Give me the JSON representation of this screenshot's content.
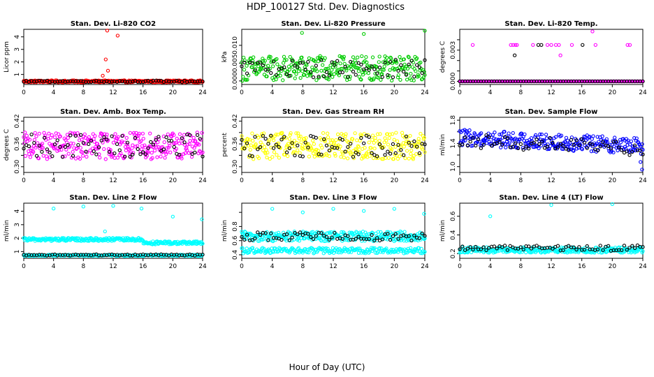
{
  "figure": {
    "title": "HDP_100127  Std. Dev. Diagnostics",
    "xlabel": "Hour of Day (UTC)"
  },
  "colors": {
    "black": "#000000",
    "red": "#ff0000",
    "green": "#00cc00",
    "magenta": "#ff00ff",
    "yellow": "#ffff00",
    "blue": "#0000ff",
    "cyan": "#00ffff"
  },
  "chart_data": [
    {
      "id": "co2",
      "type": "scatter",
      "title": "Stan. Dev. Li-820 CO2",
      "ylabel": "Licor ppm",
      "xlim": [
        0,
        24
      ],
      "ylim": [
        0.2,
        4.6
      ],
      "xticks": [
        0,
        4,
        8,
        12,
        16,
        20,
        24
      ],
      "yticks": [
        1,
        2,
        3,
        4
      ],
      "ytick_labels": [
        "1",
        "2",
        "3",
        "4"
      ],
      "color": "red",
      "secondary_color": "black",
      "series": [
        {
          "name": "main",
          "color": "red",
          "base": 0.45,
          "noise": 0.08
        },
        {
          "name": "secondary",
          "color": "black",
          "base": 0.45,
          "noise": 0.06
        }
      ],
      "outliers": [
        {
          "x": 11.2,
          "y": 4.5,
          "color": "red"
        },
        {
          "x": 12.6,
          "y": 4.1,
          "color": "red"
        },
        {
          "x": 11.0,
          "y": 2.2,
          "color": "red"
        },
        {
          "x": 11.3,
          "y": 1.3,
          "color": "red"
        },
        {
          "x": 10.6,
          "y": 0.9,
          "color": "red"
        }
      ]
    },
    {
      "id": "pressure",
      "type": "scatter",
      "title": "Stan. Dev. Li-820 Pressure",
      "ylabel": "kPa",
      "xlim": [
        0,
        24
      ],
      "ylim": [
        -0.001,
        0.0145
      ],
      "xticks": [
        0,
        4,
        8,
        12,
        16,
        20,
        24
      ],
      "yticks": [
        0,
        0.005,
        0.01
      ],
      "ytick_labels": [
        "0.000",
        "0.005",
        "0.010"
      ],
      "series": [
        {
          "name": "main",
          "color": "green",
          "base": 0.0035,
          "noise": 0.0035
        },
        {
          "name": "secondary",
          "color": "black",
          "base": 0.0035,
          "noise": 0.0025
        }
      ],
      "outliers": [
        {
          "x": 7.9,
          "y": 0.0135,
          "color": "green"
        },
        {
          "x": 16.0,
          "y": 0.0132,
          "color": "green"
        },
        {
          "x": 24.0,
          "y": 0.0141,
          "color": "green"
        }
      ]
    },
    {
      "id": "temp",
      "type": "scatter",
      "title": "Stan. Dev. Li-820 Temp.",
      "ylabel": "degrees C",
      "xlim": [
        0,
        24
      ],
      "ylim": [
        -0.0003,
        0.005
      ],
      "xticks": [
        0,
        4,
        8,
        12,
        16,
        20,
        24
      ],
      "yticks": [
        0,
        0.001,
        0.002,
        0.003,
        0.004
      ],
      "ytick_labels": [
        "0.000",
        "",
        "",
        "0.003",
        ""
      ],
      "series": [
        {
          "name": "main",
          "color": "magenta",
          "base": 0.0,
          "noise": 0.0
        },
        {
          "name": "secondary",
          "color": "black",
          "base": 0.0,
          "noise": 0.0
        }
      ],
      "outliers": [
        {
          "x": 1.7,
          "y": 0.0035,
          "color": "magenta"
        },
        {
          "x": 6.7,
          "y": 0.0035,
          "color": "magenta"
        },
        {
          "x": 7.0,
          "y": 0.0035,
          "color": "magenta"
        },
        {
          "x": 7.3,
          "y": 0.0035,
          "color": "magenta"
        },
        {
          "x": 7.5,
          "y": 0.0035,
          "color": "magenta"
        },
        {
          "x": 9.6,
          "y": 0.0035,
          "color": "magenta"
        },
        {
          "x": 10.3,
          "y": 0.0035,
          "color": "black"
        },
        {
          "x": 10.7,
          "y": 0.0035,
          "color": "black"
        },
        {
          "x": 11.5,
          "y": 0.0035,
          "color": "magenta"
        },
        {
          "x": 12.0,
          "y": 0.0035,
          "color": "magenta"
        },
        {
          "x": 12.6,
          "y": 0.0035,
          "color": "magenta"
        },
        {
          "x": 13.0,
          "y": 0.0035,
          "color": "magenta"
        },
        {
          "x": 14.7,
          "y": 0.0035,
          "color": "magenta"
        },
        {
          "x": 16.1,
          "y": 0.0035,
          "color": "black"
        },
        {
          "x": 17.8,
          "y": 0.0035,
          "color": "magenta"
        },
        {
          "x": 22.0,
          "y": 0.0035,
          "color": "magenta"
        },
        {
          "x": 22.3,
          "y": 0.0035,
          "color": "magenta"
        },
        {
          "x": 17.4,
          "y": 0.0048,
          "color": "magenta"
        },
        {
          "x": 7.2,
          "y": 0.0025,
          "color": "black"
        },
        {
          "x": 13.2,
          "y": 0.0025,
          "color": "magenta"
        }
      ]
    },
    {
      "id": "boxtemp",
      "type": "scatter",
      "title": "Stan. Dev. Amb. Box Temp.",
      "ylabel": "degrees C",
      "xlim": [
        0,
        24
      ],
      "ylim": [
        0.285,
        0.43
      ],
      "xticks": [
        0,
        4,
        8,
        12,
        16,
        20,
        24
      ],
      "yticks": [
        0.3,
        0.33,
        0.36,
        0.39,
        0.42
      ],
      "ytick_labels": [
        "0.30",
        "",
        "0.36",
        "",
        "0.42"
      ],
      "series": [
        {
          "name": "main",
          "color": "magenta",
          "base": 0.355,
          "noise": 0.035
        },
        {
          "name": "secondary",
          "color": "black",
          "base": 0.355,
          "noise": 0.03
        }
      ],
      "outliers": []
    },
    {
      "id": "rh",
      "type": "scatter",
      "title": "Stan. Dev. Gas Stream RH",
      "ylabel": "percent",
      "xlim": [
        0,
        24
      ],
      "ylim": [
        0.285,
        0.43
      ],
      "xticks": [
        0,
        4,
        8,
        12,
        16,
        20,
        24
      ],
      "yticks": [
        0.3,
        0.33,
        0.36,
        0.39,
        0.42
      ],
      "ytick_labels": [
        "0.30",
        "",
        "0.36",
        "",
        "0.42"
      ],
      "series": [
        {
          "name": "main",
          "color": "yellow",
          "base": 0.355,
          "noise": 0.035
        },
        {
          "name": "secondary",
          "color": "black",
          "base": 0.355,
          "noise": 0.03
        }
      ],
      "outliers": []
    },
    {
      "id": "sampleflow",
      "type": "scatter",
      "title": "Stan. Dev. Sample Flow",
      "ylabel": "ml/min",
      "xlim": [
        0,
        24
      ],
      "ylim": [
        0.9,
        1.85
      ],
      "xticks": [
        0,
        4,
        8,
        12,
        16,
        20,
        24
      ],
      "yticks": [
        1.0,
        1.2,
        1.4,
        1.6,
        1.8
      ],
      "ytick_labels": [
        "1.0",
        "",
        "1.4",
        "",
        "1.8"
      ],
      "series": [
        {
          "name": "main",
          "color": "blue",
          "base": 1.5,
          "noise": 0.14,
          "trend": -0.006
        },
        {
          "name": "secondary",
          "color": "black",
          "base": 1.45,
          "noise": 0.12,
          "trend": -0.006
        }
      ],
      "outliers": [
        {
          "x": 23.9,
          "y": 0.95,
          "color": "blue"
        },
        {
          "x": 23.7,
          "y": 1.08,
          "color": "blue"
        }
      ]
    },
    {
      "id": "line2",
      "type": "scatter",
      "title": "Stan. Dev. Line 2 Flow",
      "ylabel": "ml/min",
      "xlim": [
        0,
        24
      ],
      "ylim": [
        0.5,
        4.6
      ],
      "xticks": [
        0,
        4,
        8,
        12,
        16,
        20,
        24
      ],
      "yticks": [
        1,
        2,
        3,
        4
      ],
      "ytick_labels": [
        "1",
        "2",
        "3",
        "4"
      ],
      "series": [
        {
          "name": "main",
          "color": "cyan",
          "base": 1.9,
          "noise": 0.12,
          "step_at": 16,
          "step_to": 1.65
        },
        {
          "name": "secondary",
          "color": "black",
          "base": 0.75,
          "noise": 0.05
        }
      ],
      "extra_series": [
        {
          "name": "lower",
          "color": "cyan",
          "base": 0.72,
          "noise": 0.05
        }
      ],
      "outliers": [
        {
          "x": 4.0,
          "y": 4.2,
          "color": "cyan"
        },
        {
          "x": 8.0,
          "y": 4.35,
          "color": "cyan"
        },
        {
          "x": 12.0,
          "y": 4.4,
          "color": "cyan"
        },
        {
          "x": 15.8,
          "y": 4.2,
          "color": "cyan"
        },
        {
          "x": 20.0,
          "y": 3.6,
          "color": "cyan"
        },
        {
          "x": 23.9,
          "y": 3.4,
          "color": "cyan"
        },
        {
          "x": 10.9,
          "y": 2.5,
          "color": "cyan"
        }
      ]
    },
    {
      "id": "line3",
      "type": "scatter",
      "title": "Stan. Dev. Line 3 Flow",
      "ylabel": "ml/min",
      "xlim": [
        0,
        24
      ],
      "ylim": [
        0.35,
        1.13
      ],
      "xticks": [
        0,
        4,
        8,
        12,
        16,
        20,
        24
      ],
      "yticks": [
        0.4,
        0.6,
        0.8,
        1.0
      ],
      "ytick_labels": [
        "0.4",
        "0.6",
        "0.8",
        ""
      ],
      "series": [
        {
          "name": "main",
          "color": "cyan",
          "base": 0.66,
          "noise": 0.07
        },
        {
          "name": "secondary",
          "color": "black",
          "base": 0.66,
          "noise": 0.06
        }
      ],
      "extra_series": [
        {
          "name": "lower",
          "color": "cyan",
          "base": 0.46,
          "noise": 0.04
        }
      ],
      "outliers": [
        {
          "x": 4.0,
          "y": 1.05,
          "color": "cyan"
        },
        {
          "x": 8.0,
          "y": 1.0,
          "color": "cyan"
        },
        {
          "x": 12.0,
          "y": 1.05,
          "color": "cyan"
        },
        {
          "x": 16.0,
          "y": 1.02,
          "color": "cyan"
        },
        {
          "x": 20.0,
          "y": 1.05,
          "color": "cyan"
        },
        {
          "x": 23.9,
          "y": 0.98,
          "color": "cyan"
        }
      ]
    },
    {
      "id": "line4",
      "type": "scatter",
      "title": "Stan. Dev. Line 4 (LT) Flow",
      "ylabel": "ml/min",
      "xlim": [
        0,
        24
      ],
      "ylim": [
        0.15,
        0.74
      ],
      "xticks": [
        0,
        4,
        8,
        12,
        16,
        20,
        24
      ],
      "yticks": [
        0.2,
        0.4,
        0.6
      ],
      "ytick_labels": [
        "0.2",
        "0.4",
        "0.6"
      ],
      "series": [
        {
          "name": "main",
          "color": "cyan",
          "base": 0.24,
          "noise": 0.03
        },
        {
          "name": "secondary",
          "color": "black",
          "base": 0.26,
          "noise": 0.03
        }
      ],
      "outliers": [
        {
          "x": 4.0,
          "y": 0.6,
          "color": "cyan"
        },
        {
          "x": 12.0,
          "y": 0.72,
          "color": "cyan"
        },
        {
          "x": 20.0,
          "y": 0.73,
          "color": "cyan"
        }
      ]
    }
  ]
}
